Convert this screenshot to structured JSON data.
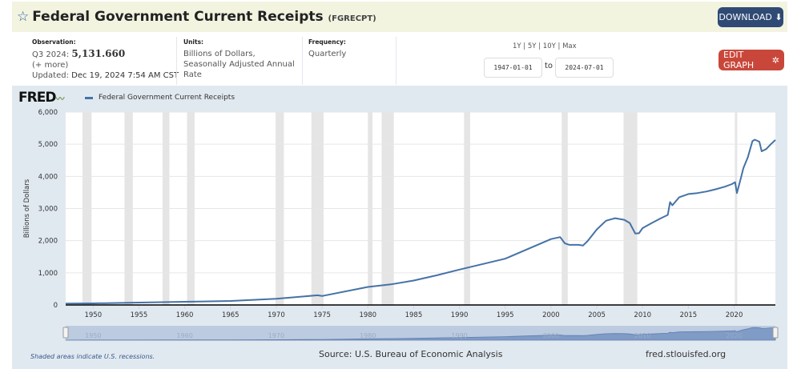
{
  "header": {
    "title": "Federal Government Current Receipts",
    "series_id": "(FGRECPT)",
    "download_label": "DOWNLOAD"
  },
  "info": {
    "observation_label": "Observation:",
    "observation_period": "Q3 2024:",
    "observation_value": "5,131.660",
    "more": "(+ more)",
    "updated_label": "Updated:",
    "updated": "Dec 19, 2024 7:54 AM CST",
    "units_label": "Units:",
    "units": "Billions of Dollars, Seasonally Adjusted Annual Rate",
    "frequency_label": "Frequency:",
    "frequency": "Quarterly"
  },
  "controls": {
    "ranges": [
      "1Y",
      "5Y",
      "10Y",
      "Max"
    ],
    "start_date": "1947-01-01",
    "to": "to",
    "end_date": "2024-07-01",
    "edit_label": "EDIT GRAPH"
  },
  "colors": {
    "line": "#4572a7",
    "recession": "#e5e5e5",
    "header_bg": "#f2f4e0",
    "panel_bg": "#e1e9f0",
    "download": "#2f4a74",
    "edit": "#c9473a"
  },
  "chart_data": {
    "type": "line",
    "brand": "FRED",
    "legend": [
      "Federal Government Current Receipts"
    ],
    "ylabel": "Billions of Dollars",
    "ylim": [
      0,
      6000
    ],
    "xlim": [
      1947.0,
      2024.5
    ],
    "yticks": [
      "0",
      "1,000",
      "2,000",
      "3,000",
      "4,000",
      "5,000",
      "6,000"
    ],
    "xticks": [
      "1950",
      "1955",
      "1960",
      "1965",
      "1970",
      "1975",
      "1980",
      "1985",
      "1990",
      "1995",
      "2000",
      "2005",
      "2010",
      "2015",
      "2020"
    ],
    "navigator_ticks": [
      "1950",
      "1960",
      "1970",
      "1980",
      "1990",
      "2000",
      "2010",
      "2020"
    ],
    "grid": true,
    "recessions": [
      [
        1948.83,
        1949.83
      ],
      [
        1953.42,
        1954.33
      ],
      [
        1957.58,
        1958.33
      ],
      [
        1960.25,
        1961.08
      ],
      [
        1969.92,
        1970.83
      ],
      [
        1973.83,
        1975.17
      ],
      [
        1980.0,
        1980.5
      ],
      [
        1981.5,
        1982.83
      ],
      [
        1990.5,
        1991.17
      ],
      [
        2001.17,
        2001.83
      ],
      [
        2007.92,
        2009.42
      ],
      [
        2020.08,
        2020.33
      ]
    ],
    "series": [
      {
        "name": "Federal Government Current Receipts",
        "x": [
          1947,
          1950,
          1955,
          1960,
          1965,
          1970,
          1974.5,
          1975,
          1980,
          1982.5,
          1985,
          1987.5,
          1990,
          1995,
          2000,
          2001,
          2001.5,
          2002,
          2003,
          2003.5,
          2004,
          2005,
          2006,
          2007,
          2008,
          2008.6,
          2009.2,
          2009.6,
          2010,
          2011,
          2012,
          2012.75,
          2013,
          2013.25,
          2014,
          2015,
          2016,
          2017,
          2018,
          2019,
          2019.75,
          2020.1,
          2020.3,
          2020.75,
          2021,
          2021.5,
          2022,
          2022.25,
          2022.75,
          2023,
          2023.5,
          2024,
          2024.5
        ],
        "y": [
          44,
          50,
          74,
          99,
          125,
          195,
          300,
          280,
          560,
          640,
          760,
          920,
          1100,
          1440,
          2050,
          2110,
          1920,
          1870,
          1870,
          1850,
          1990,
          2350,
          2620,
          2700,
          2650,
          2550,
          2220,
          2230,
          2390,
          2550,
          2700,
          2800,
          3200,
          3100,
          3350,
          3450,
          3480,
          3530,
          3600,
          3680,
          3760,
          3820,
          3480,
          3960,
          4250,
          4600,
          5100,
          5140,
          5080,
          4780,
          4850,
          5000,
          5131.66
        ]
      }
    ]
  },
  "footer": {
    "note": "Shaded areas indicate U.S. recessions.",
    "source": "Source: U.S. Bureau of Economic Analysis",
    "site": "fred.stlouisfed.org"
  }
}
